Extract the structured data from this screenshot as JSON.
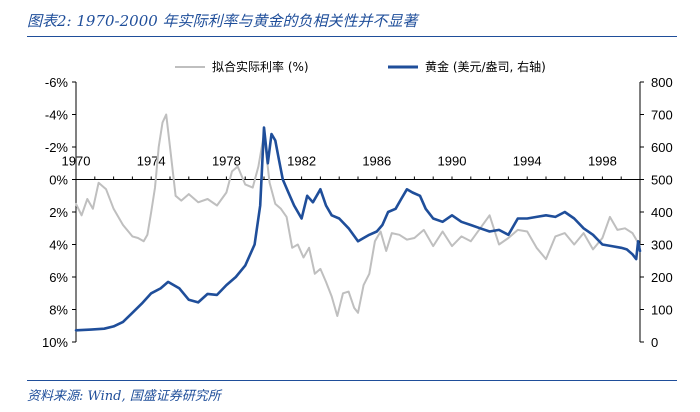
{
  "header": {
    "title": "图表2: 1970-2000 年实际利率与黄金的负相关性并不显著"
  },
  "footer": {
    "source": "资料来源: Wind, 国盛证券研究所"
  },
  "chart_data": {
    "type": "line",
    "title": "图表2: 1970-2000 年实际利率与黄金的负相关性并不显著",
    "source": "资料来源: Wind, 国盛证券研究所",
    "x_axis": {
      "ticks": [
        1970,
        1974,
        1978,
        1982,
        1986,
        1990,
        1994,
        1998
      ],
      "range": [
        1970,
        2000
      ]
    },
    "left_axis": {
      "reversed": true,
      "range": [
        -6,
        10
      ],
      "tick_values": [
        -6,
        -4,
        -2,
        0,
        2,
        4,
        6,
        8,
        10
      ],
      "tick_labels": [
        "-6%",
        "-4%",
        "-2%",
        "0%",
        "2%",
        "4%",
        "6%",
        "8%",
        "10%"
      ]
    },
    "right_axis": {
      "range": [
        0,
        800
      ],
      "tick_values": [
        0,
        100,
        200,
        300,
        400,
        500,
        600,
        700,
        800
      ],
      "tick_labels": [
        "0",
        "100",
        "200",
        "300",
        "400",
        "500",
        "600",
        "700",
        "800"
      ]
    },
    "legend_position": "top",
    "series": [
      {
        "name": "拟合实际利率 (%)",
        "axis": "left",
        "color": "#bfbfbf",
        "x": [
          1970.0,
          1970.3,
          1970.6,
          1970.9,
          1971.2,
          1971.6,
          1972.0,
          1972.5,
          1973.0,
          1973.3,
          1973.6,
          1973.8,
          1974.0,
          1974.2,
          1974.4,
          1974.6,
          1974.8,
          1975.0,
          1975.3,
          1975.6,
          1976.0,
          1976.5,
          1977.0,
          1977.5,
          1978.0,
          1978.3,
          1978.6,
          1979.0,
          1979.4,
          1979.7,
          1980.0,
          1980.3,
          1980.6,
          1980.9,
          1981.2,
          1981.5,
          1981.8,
          1982.1,
          1982.4,
          1982.7,
          1983.0,
          1983.3,
          1983.6,
          1983.9,
          1984.2,
          1984.5,
          1984.8,
          1985.0,
          1985.3,
          1985.6,
          1985.9,
          1986.2,
          1986.5,
          1986.8,
          1987.2,
          1987.6,
          1988.0,
          1988.5,
          1989.0,
          1989.5,
          1990.0,
          1990.5,
          1991.0,
          1991.5,
          1992.0,
          1992.5,
          1993.0,
          1993.5,
          1994.0,
          1994.5,
          1995.0,
          1995.5,
          1996.0,
          1996.5,
          1997.0,
          1997.5,
          1998.0,
          1998.4,
          1998.8,
          1999.2,
          1999.6,
          2000.0
        ],
        "y": [
          1.5,
          2.2,
          1.2,
          1.8,
          0.2,
          0.6,
          1.8,
          2.8,
          3.5,
          3.6,
          3.8,
          3.4,
          2.0,
          0.5,
          -2.0,
          -3.5,
          -4.0,
          -2.0,
          1.0,
          1.3,
          0.9,
          1.4,
          1.2,
          1.6,
          0.8,
          -0.5,
          -0.8,
          0.3,
          0.5,
          -0.8,
          -2.8,
          0.2,
          1.5,
          1.8,
          2.3,
          4.2,
          4.0,
          4.8,
          4.2,
          5.8,
          5.5,
          6.3,
          7.2,
          8.4,
          7.0,
          6.9,
          7.9,
          8.2,
          6.5,
          5.8,
          3.8,
          3.2,
          4.4,
          3.3,
          3.4,
          3.7,
          3.6,
          3.1,
          4.1,
          3.2,
          4.1,
          3.5,
          3.8,
          3.0,
          2.2,
          4.0,
          3.6,
          3.1,
          3.2,
          4.2,
          4.9,
          3.5,
          3.3,
          4.0,
          3.3,
          4.3,
          3.6,
          2.3,
          3.1,
          3.0,
          3.3,
          4.1
        ]
      },
      {
        "name": "黄金 (美元/盎司, 右轴)",
        "axis": "right",
        "color": "#1f4e9a",
        "x": [
          1970.0,
          1970.8,
          1971.5,
          1972.0,
          1972.5,
          1973.0,
          1973.5,
          1974.0,
          1974.5,
          1974.9,
          1975.5,
          1976.0,
          1976.5,
          1977.0,
          1977.5,
          1978.0,
          1978.5,
          1979.0,
          1979.5,
          1979.8,
          1980.0,
          1980.2,
          1980.4,
          1980.6,
          1980.8,
          1981.0,
          1981.3,
          1981.6,
          1982.0,
          1982.3,
          1982.6,
          1983.0,
          1983.3,
          1983.6,
          1984.0,
          1984.5,
          1985.0,
          1985.3,
          1985.6,
          1986.0,
          1986.3,
          1986.6,
          1987.0,
          1987.3,
          1987.6,
          1987.9,
          1988.3,
          1988.6,
          1989.0,
          1989.5,
          1990.0,
          1990.5,
          1991.0,
          1991.5,
          1992.0,
          1992.5,
          1993.0,
          1993.5,
          1994.0,
          1994.5,
          1995.0,
          1995.5,
          1996.0,
          1996.5,
          1997.0,
          1997.5,
          1998.0,
          1998.5,
          1999.0,
          1999.3,
          1999.6,
          1999.8,
          1999.9,
          2000.0
        ],
        "y": [
          36,
          38,
          41,
          48,
          62,
          90,
          118,
          150,
          165,
          185,
          165,
          130,
          122,
          148,
          145,
          175,
          200,
          235,
          300,
          420,
          660,
          550,
          640,
          620,
          560,
          500,
          460,
          420,
          380,
          450,
          430,
          470,
          420,
          390,
          380,
          350,
          310,
          320,
          330,
          340,
          360,
          400,
          410,
          440,
          470,
          460,
          450,
          410,
          380,
          370,
          390,
          370,
          360,
          350,
          340,
          345,
          330,
          380,
          380,
          385,
          390,
          385,
          400,
          380,
          350,
          330,
          300,
          295,
          290,
          285,
          270,
          255,
          310,
          280
        ]
      }
    ]
  }
}
